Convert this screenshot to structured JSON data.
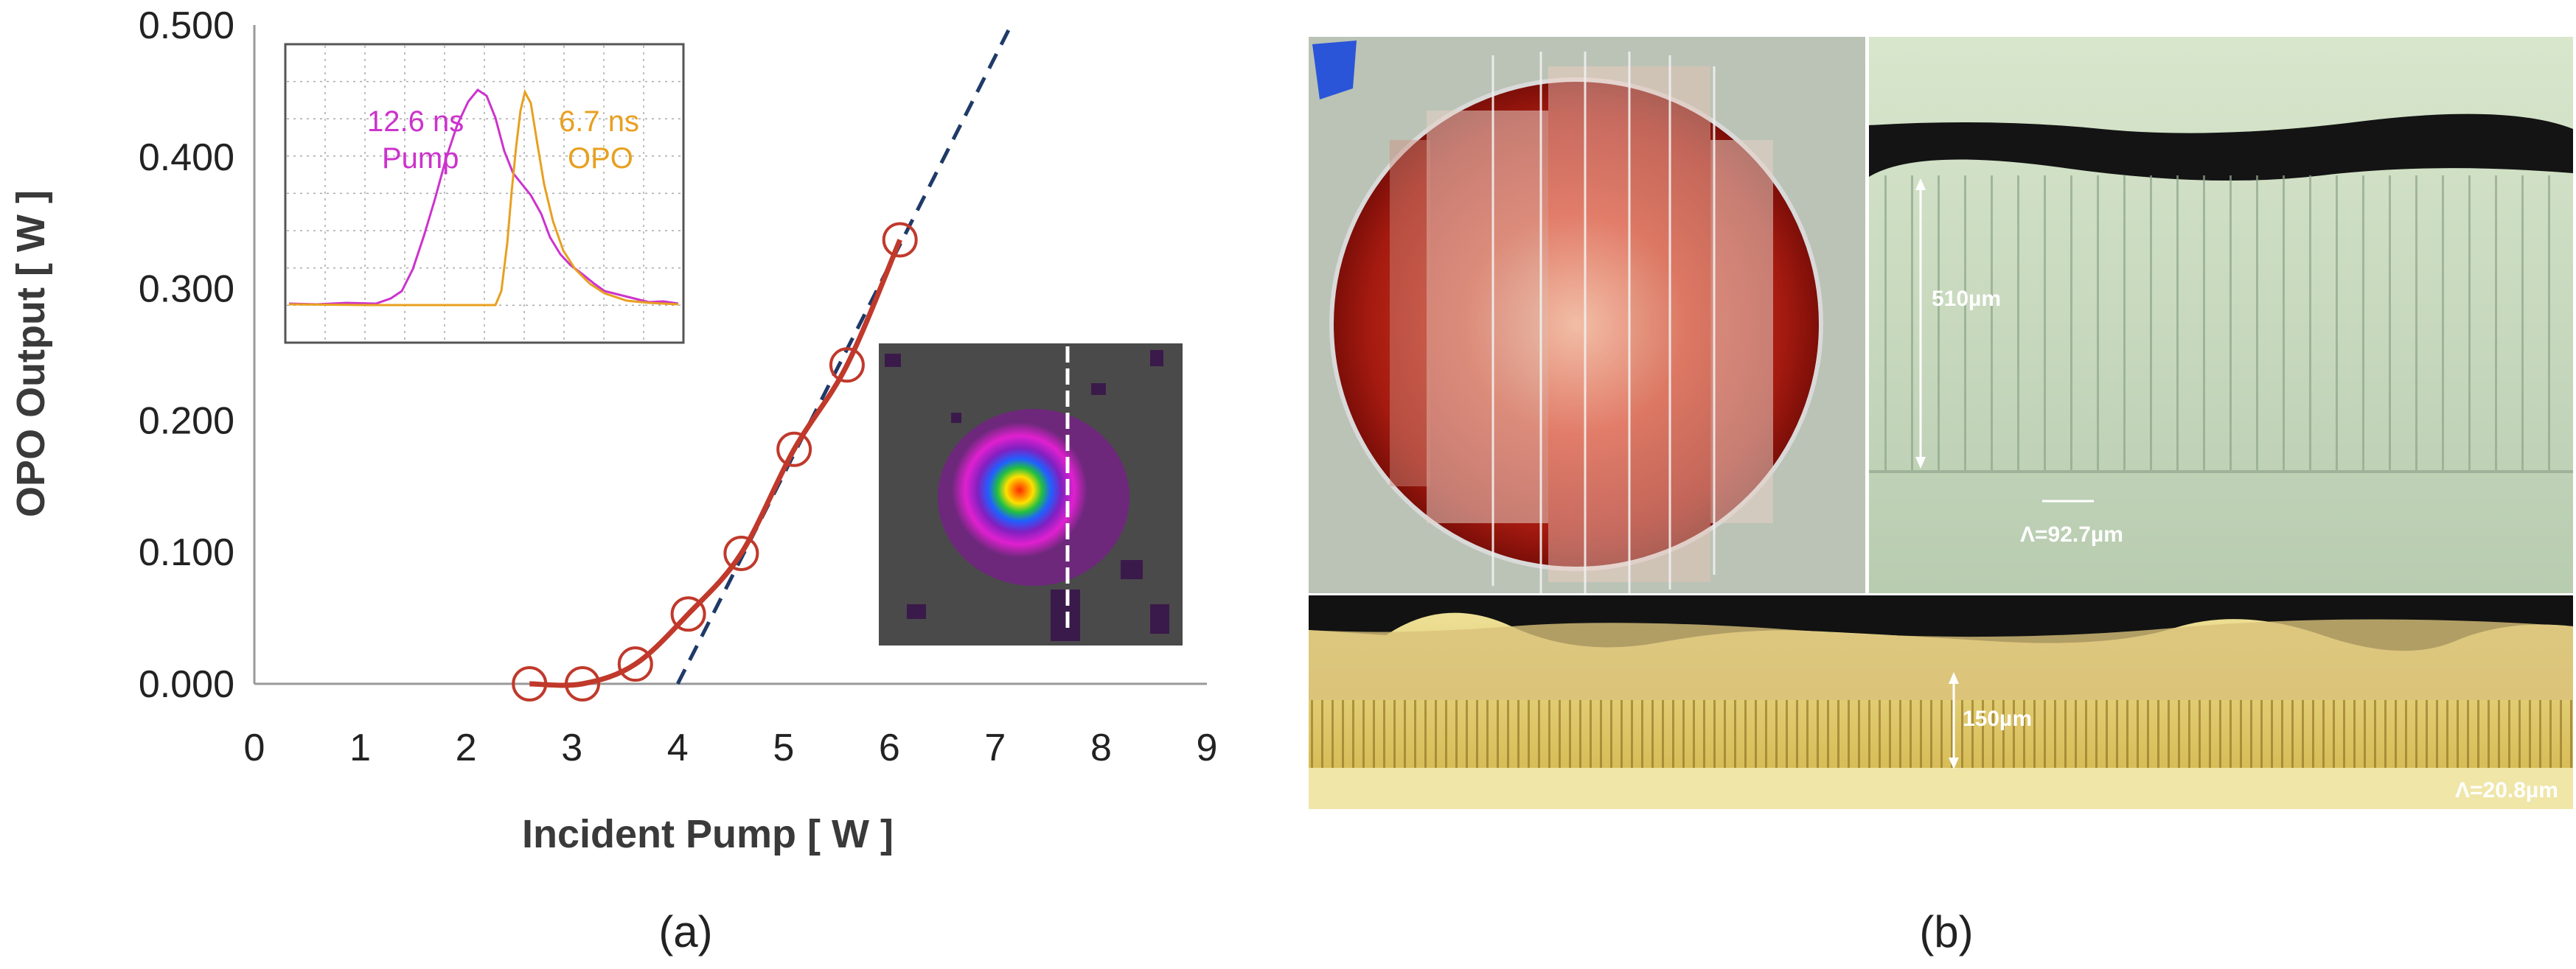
{
  "chart_data": {
    "type": "line",
    "xlabel": "Incident Pump [ W ]",
    "ylabel": "OPO Output [ W ]",
    "xlim": [
      0,
      9
    ],
    "ylim": [
      0,
      0.5
    ],
    "x_ticks": [
      "0",
      "1",
      "2",
      "3",
      "4",
      "5",
      "6",
      "7",
      "8",
      "9"
    ],
    "y_ticks": [
      "0.000",
      "0.100",
      "0.200",
      "0.300",
      "0.400",
      "0.500"
    ],
    "grid": false,
    "series": [
      {
        "style": "markers-and-smooth-line",
        "color": "#c0392b",
        "x": [
          2.6,
          3.1,
          3.6,
          4.1,
          4.6,
          5.1,
          5.6,
          6.1
        ],
        "y": [
          0.0,
          0.0,
          0.015,
          0.053,
          0.099,
          0.178,
          0.242,
          0.337
        ]
      },
      {
        "style": "dashed-linear-fit",
        "color": "#1f3a68",
        "x": [
          4.0,
          7.15
        ],
        "y": [
          0.0,
          0.5
        ]
      }
    ]
  },
  "inset_pulse": {
    "pump_label_1": "12.6 ns",
    "pump_label_2": "Pump",
    "opo_label_1": "6.7 ns",
    "opo_label_2": "OPO",
    "pump_color": "#cc33cc",
    "opo_color": "#e8a020"
  },
  "inset_beam": {
    "description_icon": "beam-profile"
  },
  "photos": {
    "thickness_1": "510µm",
    "period_1": "Λ=92.7µm",
    "thickness_2": "150µm",
    "period_2": "Λ=20.8µm"
  },
  "panel_labels": {
    "a": "(a)",
    "b": "(b)"
  }
}
